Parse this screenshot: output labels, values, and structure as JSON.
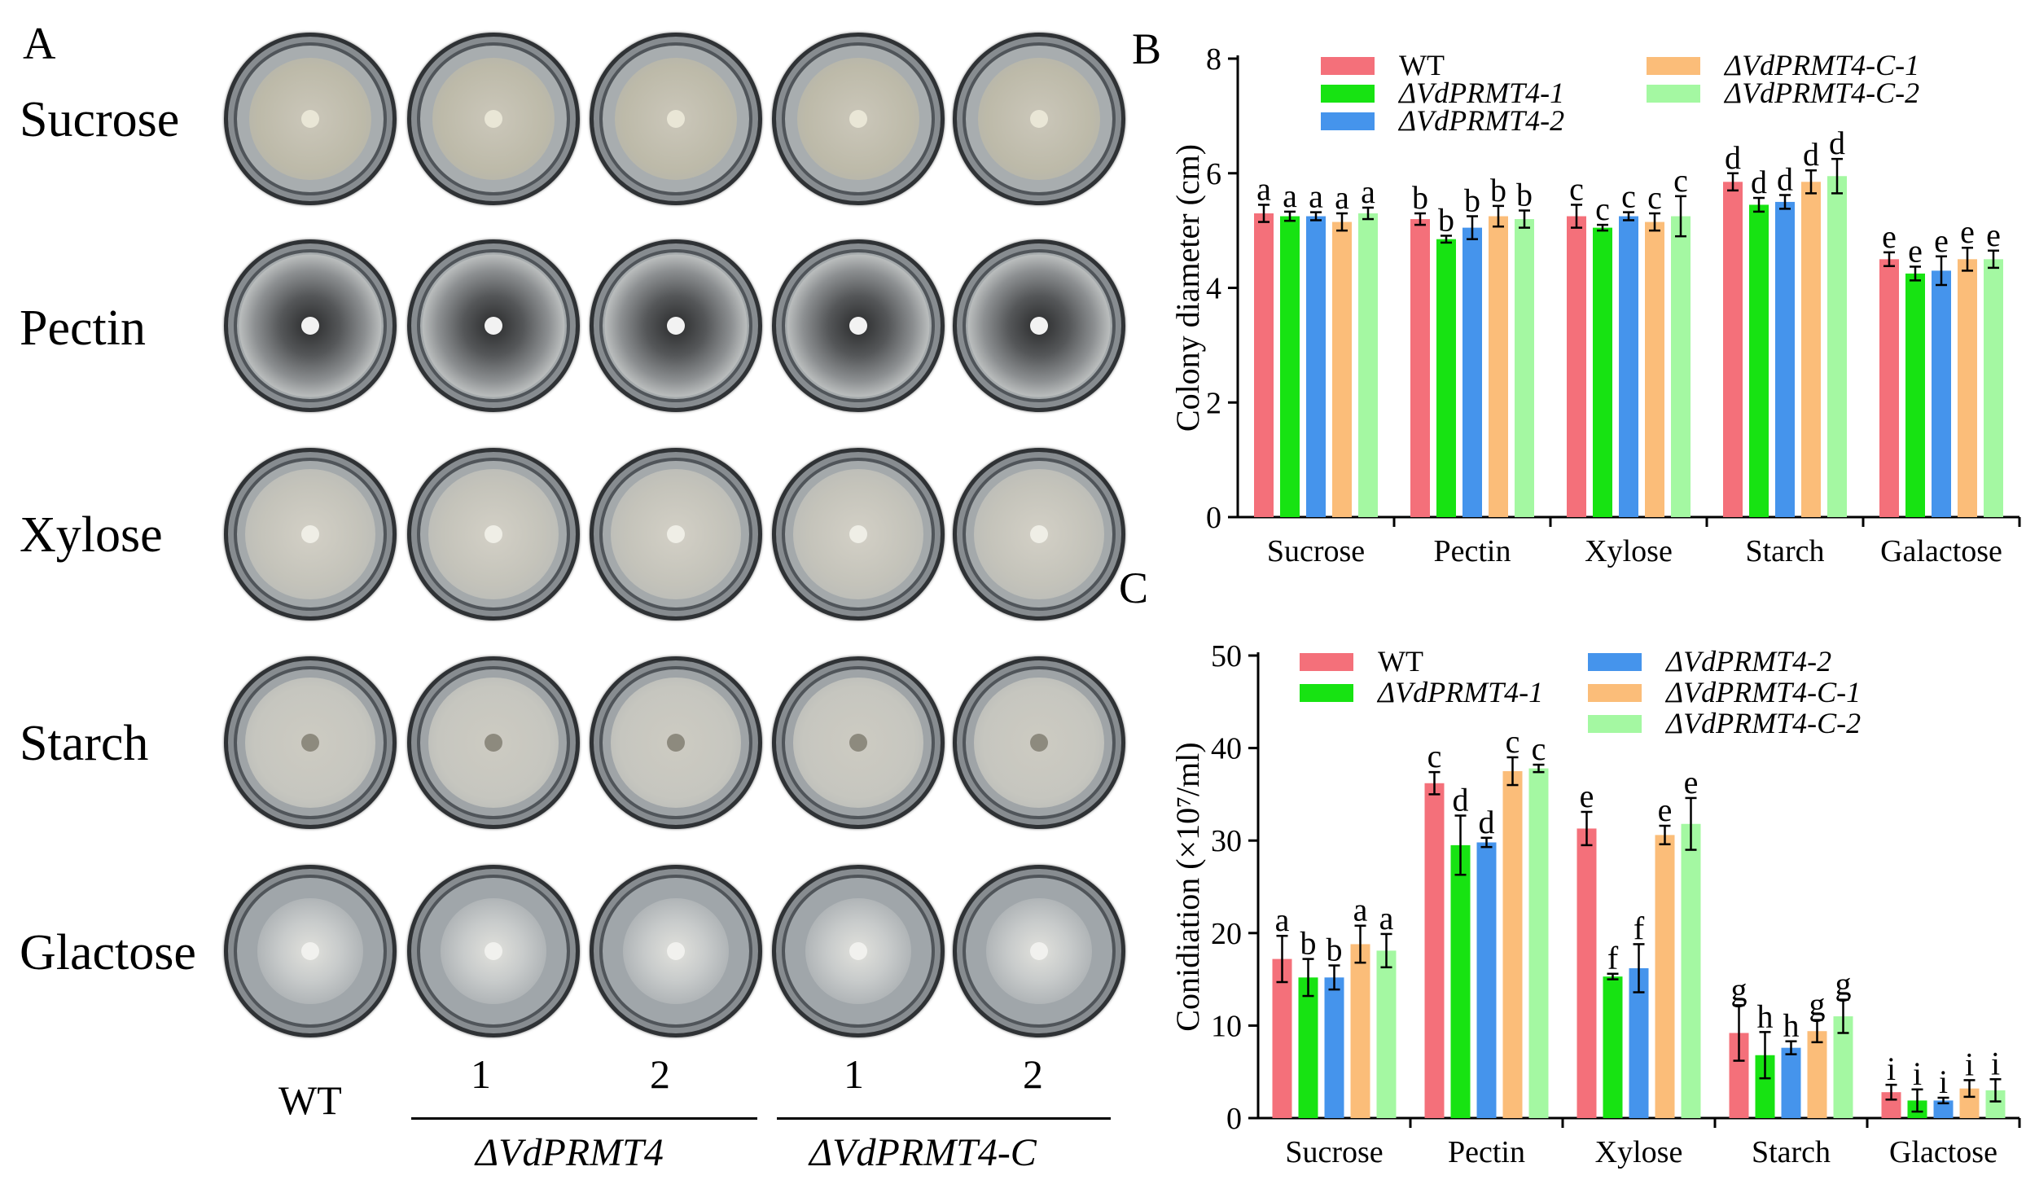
{
  "panel_a": {
    "letter": "A",
    "rows": [
      "Sucrose",
      "Pectin",
      "Xylose",
      "Starch",
      "Glactose"
    ],
    "columns": [
      "WT",
      "1",
      "2",
      "1",
      "2"
    ],
    "groups": [
      "ΔVdPRMT4",
      "ΔVdPRMT4-C"
    ]
  },
  "chart_data": [
    {
      "panel": "B",
      "type": "bar",
      "ylabel": "Colony diameter (cm)",
      "ylim": [
        0,
        8
      ],
      "yticks": [
        0,
        2,
        4,
        6,
        8
      ],
      "categories": [
        "Sucrose",
        "Pectin",
        "Xylose",
        "Starch",
        "Galactose"
      ],
      "series": [
        {
          "name": "WT",
          "color": "#f4707a",
          "values": [
            5.3,
            5.2,
            5.25,
            5.85,
            4.5
          ],
          "errors": [
            0.15,
            0.1,
            0.2,
            0.15,
            0.12
          ],
          "letters": [
            "a",
            "b",
            "c",
            "d",
            "e"
          ]
        },
        {
          "name": "ΔVdPRMT4-1",
          "color": "#17e312",
          "values": [
            5.25,
            4.85,
            5.05,
            5.45,
            4.25
          ],
          "errors": [
            0.08,
            0.06,
            0.05,
            0.12,
            0.12
          ],
          "letters": [
            "a",
            "b",
            "c",
            "d",
            "e"
          ]
        },
        {
          "name": "ΔVdPRMT4-2",
          "color": "#4594ec",
          "values": [
            5.25,
            5.05,
            5.25,
            5.5,
            4.3
          ],
          "errors": [
            0.07,
            0.2,
            0.07,
            0.12,
            0.25
          ],
          "letters": [
            "a",
            "b",
            "c",
            "d",
            "e"
          ]
        },
        {
          "name": "ΔVdPRMT4-C-1",
          "color": "#fbbd79",
          "values": [
            5.15,
            5.25,
            5.15,
            5.85,
            4.5
          ],
          "errors": [
            0.15,
            0.18,
            0.15,
            0.2,
            0.2
          ],
          "letters": [
            "a",
            "b",
            "c",
            "d",
            "e"
          ]
        },
        {
          "name": "ΔVdPRMT4-C-2",
          "color": "#a4f8a2",
          "values": [
            5.3,
            5.2,
            5.25,
            5.95,
            4.5
          ],
          "errors": [
            0.1,
            0.15,
            0.35,
            0.3,
            0.15
          ],
          "letters": [
            "a",
            "b",
            "c",
            "d",
            "e"
          ]
        }
      ]
    },
    {
      "panel": "C",
      "type": "bar",
      "ylabel": "Conidiation (×10⁷/ml)",
      "ylim": [
        0,
        50
      ],
      "yticks": [
        0,
        10,
        20,
        30,
        40,
        50
      ],
      "categories": [
        "Sucrose",
        "Pectin",
        "Xylose",
        "Starch",
        "Glactose"
      ],
      "series": [
        {
          "name": "WT",
          "color": "#f4707a",
          "values": [
            17.2,
            36.2,
            31.3,
            9.2,
            2.8
          ],
          "errors": [
            2.5,
            1.2,
            1.8,
            3.0,
            0.8
          ],
          "letters": [
            "a",
            "c",
            "e",
            "g",
            "i"
          ]
        },
        {
          "name": "ΔVdPRMT4-1",
          "color": "#17e312",
          "values": [
            15.2,
            29.5,
            15.3,
            6.8,
            1.9
          ],
          "errors": [
            2.0,
            3.2,
            0.3,
            2.5,
            1.2
          ],
          "letters": [
            "b",
            "d",
            "f",
            "h",
            "i"
          ]
        },
        {
          "name": "ΔVdPRMT4-2",
          "color": "#4594ec",
          "values": [
            15.2,
            29.8,
            16.2,
            7.6,
            1.9
          ],
          "errors": [
            1.3,
            0.5,
            2.6,
            0.7,
            0.3
          ],
          "letters": [
            "b",
            "d",
            "f",
            "h",
            "i"
          ]
        },
        {
          "name": "ΔVdPRMT4-C-1",
          "color": "#fbbd79",
          "values": [
            18.8,
            37.5,
            30.6,
            9.4,
            3.2
          ],
          "errors": [
            2.0,
            1.5,
            1.0,
            1.2,
            0.9
          ],
          "letters": [
            "a",
            "c",
            "e",
            "g",
            "i"
          ]
        },
        {
          "name": "ΔVdPRMT4-C-2",
          "color": "#a4f8a2",
          "values": [
            18.1,
            37.8,
            31.8,
            11.0,
            3.0
          ],
          "errors": [
            1.8,
            0.4,
            2.8,
            1.8,
            1.2
          ],
          "letters": [
            "a",
            "c",
            "e",
            "g",
            "i"
          ]
        }
      ]
    }
  ]
}
